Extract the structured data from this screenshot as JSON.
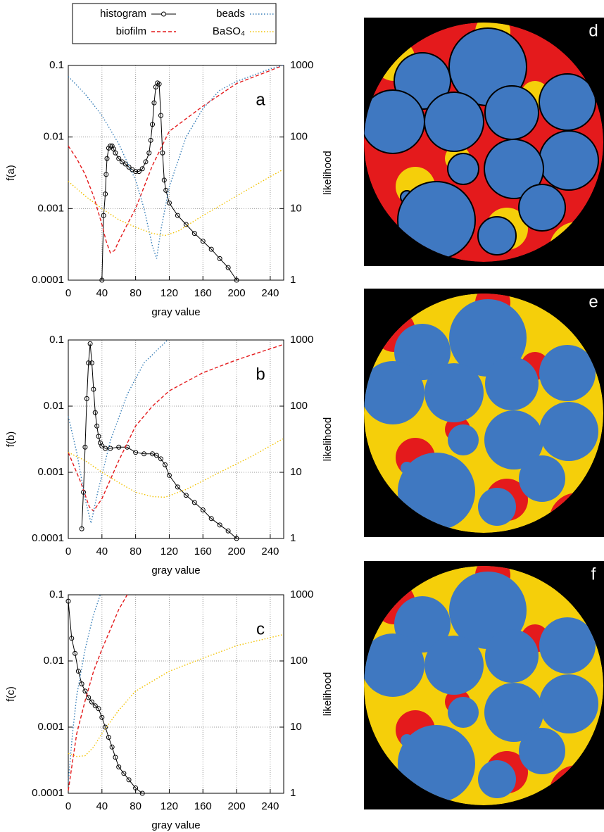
{
  "chart_data": [
    {
      "type": "line",
      "label": "a",
      "xlabel": "gray value",
      "ylabel": "f(a)",
      "y2label": "likelihood",
      "xlim": [
        0,
        256
      ],
      "xticks": [
        0,
        40,
        80,
        120,
        160,
        200,
        240
      ],
      "ylim": [
        0.0001,
        0.1
      ],
      "yticks": [
        0.0001,
        0.001,
        0.01,
        0.1
      ],
      "ylog": true,
      "y2lim": [
        1,
        1000
      ],
      "y2ticks": [
        1,
        10,
        100,
        1000
      ],
      "y2log": true,
      "grid": true,
      "series": [
        {
          "name": "histogram",
          "color": "#000000",
          "style": "solid",
          "marker": "circle",
          "x": [
            40,
            42,
            44,
            45,
            46,
            48,
            50,
            52,
            54,
            56,
            60,
            64,
            68,
            72,
            76,
            80,
            84,
            88,
            92,
            96,
            98,
            100,
            102,
            104,
            106,
            108,
            110,
            112,
            114,
            116,
            120,
            130,
            140,
            150,
            160,
            170,
            180,
            190,
            200
          ],
          "values": [
            0.0001,
            0.0008,
            0.0016,
            0.003,
            0.005,
            0.007,
            0.0075,
            0.0075,
            0.0068,
            0.006,
            0.005,
            0.0045,
            0.0042,
            0.0038,
            0.0035,
            0.0033,
            0.0033,
            0.0036,
            0.0045,
            0.006,
            0.009,
            0.015,
            0.03,
            0.05,
            0.057,
            0.055,
            0.02,
            0.006,
            0.0025,
            0.0018,
            0.0012,
            0.0008,
            0.0006,
            0.00045,
            0.00035,
            0.00027,
            0.0002,
            0.00015,
            0.0001
          ]
        },
        {
          "name": "biofilm",
          "color": "#e41a1c",
          "style": "dashed",
          "axis": "y2",
          "x": [
            0,
            10,
            20,
            30,
            40,
            45,
            50,
            55,
            60,
            70,
            80,
            100,
            120,
            160,
            200,
            240,
            255
          ],
          "values": [
            75,
            50,
            30,
            15,
            6,
            3.5,
            2.4,
            2.6,
            3.5,
            6,
            10,
            40,
            120,
            270,
            560,
            850,
            1000
          ]
        },
        {
          "name": "beads",
          "color": "#377eb8",
          "style": "dotted",
          "axis": "y2",
          "x": [
            0,
            20,
            40,
            60,
            80,
            90,
            100,
            105,
            110,
            120,
            140,
            160,
            180,
            200,
            240,
            255
          ],
          "values": [
            700,
            400,
            200,
            80,
            25,
            10,
            3,
            2,
            5,
            20,
            100,
            250,
            450,
            600,
            900,
            1000
          ]
        },
        {
          "name": "BaSO₄",
          "color": "#f2c200",
          "style": "dotted",
          "axis": "y2",
          "x": [
            0,
            20,
            40,
            60,
            80,
            100,
            115,
            130,
            160,
            200,
            240,
            255
          ],
          "values": [
            24,
            15,
            10,
            7,
            5.5,
            4.5,
            4.2,
            4.8,
            8,
            15,
            28,
            35
          ]
        }
      ]
    },
    {
      "type": "line",
      "label": "b",
      "xlabel": "gray value",
      "ylabel": "f(b)",
      "y2label": "likelihood",
      "xlim": [
        0,
        256
      ],
      "xticks": [
        0,
        40,
        80,
        120,
        160,
        200,
        240
      ],
      "ylim": [
        0.0001,
        0.1
      ],
      "yticks": [
        0.0001,
        0.001,
        0.01,
        0.1
      ],
      "ylog": true,
      "y2lim": [
        1,
        1000
      ],
      "y2ticks": [
        1,
        10,
        100,
        1000
      ],
      "y2log": true,
      "grid": true,
      "series": [
        {
          "color": "#000000",
          "style": "solid",
          "marker": "circle",
          "x": [
            16,
            18,
            20,
            22,
            24,
            26,
            28,
            30,
            32,
            34,
            36,
            38,
            40,
            44,
            50,
            60,
            70,
            80,
            90,
            100,
            105,
            110,
            115,
            120,
            130,
            140,
            150,
            160,
            170,
            180,
            190,
            200
          ],
          "values": [
            0.00014,
            0.0005,
            0.0024,
            0.013,
            0.045,
            0.088,
            0.045,
            0.018,
            0.008,
            0.005,
            0.0035,
            0.0028,
            0.0025,
            0.0023,
            0.0023,
            0.0024,
            0.0024,
            0.002,
            0.0019,
            0.0019,
            0.0018,
            0.0016,
            0.0013,
            0.0009,
            0.0006,
            0.00045,
            0.00035,
            0.00027,
            0.0002,
            0.00016,
            0.00013,
            0.0001
          ]
        },
        {
          "color": "#e41a1c",
          "style": "dashed",
          "axis": "y2",
          "x": [
            0,
            15,
            25,
            30,
            40,
            60,
            80,
            100,
            120,
            160,
            200,
            255
          ],
          "values": [
            20,
            7,
            3,
            2.6,
            4,
            15,
            50,
            100,
            170,
            320,
            500,
            850
          ]
        },
        {
          "color": "#377eb8",
          "style": "dotted",
          "axis": "y2",
          "x": [
            0,
            10,
            20,
            27,
            35,
            50,
            70,
            90,
            118
          ],
          "values": [
            70,
            20,
            4,
            1.7,
            5,
            30,
            150,
            450,
            1000
          ]
        },
        {
          "color": "#f2c200",
          "style": "dotted",
          "axis": "y2",
          "x": [
            0,
            20,
            40,
            60,
            80,
            100,
            115,
            140,
            180,
            220,
            255
          ],
          "values": [
            20,
            15,
            10,
            7,
            5,
            4.3,
            4.2,
            5.5,
            10,
            18,
            32
          ]
        }
      ]
    },
    {
      "type": "line",
      "label": "c",
      "xlabel": "gray value",
      "ylabel": "f(c)",
      "y2label": "likelihood",
      "xlim": [
        0,
        256
      ],
      "xticks": [
        0,
        40,
        80,
        120,
        160,
        200,
        240
      ],
      "ylim": [
        0.0001,
        0.1
      ],
      "yticks": [
        0.0001,
        0.001,
        0.01,
        0.1
      ],
      "ylog": true,
      "y2lim": [
        1,
        1000
      ],
      "y2ticks": [
        1,
        10,
        100,
        1000
      ],
      "y2log": true,
      "grid": true,
      "series": [
        {
          "color": "#000000",
          "style": "solid",
          "marker": "circle",
          "x": [
            0,
            4,
            8,
            12,
            16,
            20,
            24,
            28,
            32,
            36,
            40,
            44,
            48,
            52,
            56,
            60,
            66,
            72,
            80,
            88
          ],
          "values": [
            0.08,
            0.022,
            0.013,
            0.007,
            0.0045,
            0.0035,
            0.0028,
            0.0024,
            0.0021,
            0.0019,
            0.0014,
            0.001,
            0.0007,
            0.0005,
            0.00035,
            0.00025,
            0.0002,
            0.00016,
            0.00012,
            0.0001
          ]
        },
        {
          "color": "#e41a1c",
          "style": "dashed",
          "axis": "y2",
          "x": [
            0,
            5,
            10,
            20,
            30,
            40,
            50,
            60,
            70
          ],
          "values": [
            1.1,
            3,
            8,
            25,
            70,
            150,
            300,
            600,
            1000
          ]
        },
        {
          "color": "#377eb8",
          "style": "dotted",
          "axis": "y2",
          "x": [
            0,
            5,
            10,
            20,
            30,
            38
          ],
          "values": [
            1.5,
            8,
            30,
            150,
            500,
            1000
          ]
        },
        {
          "color": "#f2c200",
          "style": "dotted",
          "axis": "y2",
          "x": [
            0,
            10,
            20,
            30,
            40,
            60,
            80,
            120,
            160,
            200,
            255
          ],
          "values": [
            4,
            3.6,
            3.7,
            5,
            8,
            18,
            35,
            70,
            110,
            170,
            250
          ]
        }
      ]
    }
  ],
  "images": [
    {
      "label": "d"
    },
    {
      "label": "e"
    },
    {
      "label": "f"
    }
  ]
}
